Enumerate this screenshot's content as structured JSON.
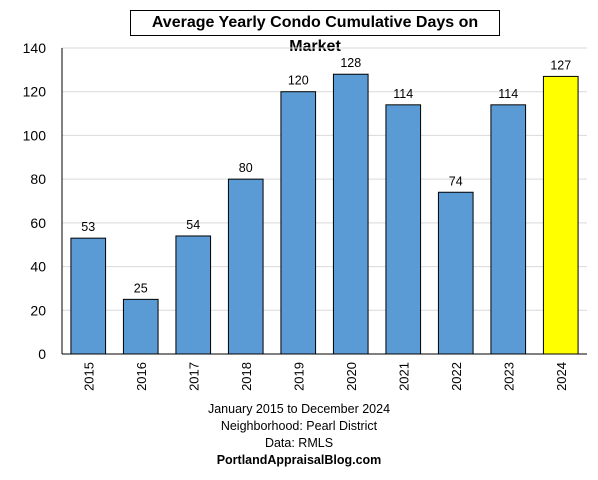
{
  "chart_data": {
    "type": "bar",
    "title": "Average Yearly Condo Cumulative Days on Market",
    "xlabel": "",
    "ylabel": "",
    "categories": [
      "2015",
      "2016",
      "2017",
      "2018",
      "2019",
      "2020",
      "2021",
      "2022",
      "2023",
      "2024"
    ],
    "values": [
      53,
      25,
      54,
      80,
      120,
      128,
      114,
      74,
      114,
      127
    ],
    "data_labels": [
      "53",
      "25",
      "54",
      "80",
      "120",
      "128",
      "114",
      "74",
      "114",
      "127"
    ],
    "ylim": [
      0,
      140
    ],
    "yticks": [
      0,
      20,
      40,
      60,
      80,
      100,
      120,
      140
    ],
    "grid": "horizontal",
    "legend": "none",
    "colors": {
      "bar": "#5b9bd5",
      "highlight_bar": "#ffff00",
      "highlight_category": "2024",
      "bar_outline": "#000000",
      "grid": "#d9d9d9"
    }
  },
  "footer": {
    "line1": "January 2015 to December 2024",
    "line2": "Neighborhood: Pearl District",
    "line3": "Data: RMLS",
    "line4": "PortlandAppraisalBlog.com"
  }
}
